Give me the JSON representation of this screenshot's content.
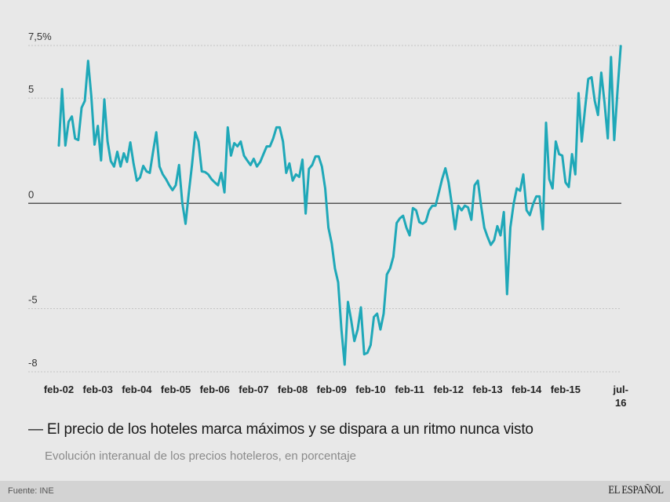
{
  "chart_data": {
    "type": "line",
    "title": "El precio de los hoteles marca máximos y se dispara a un ritmo nunca visto",
    "title_prefix": "—",
    "subtitle": "Evolución interanual de los precios hoteleros, en porcentaje",
    "xlabel": "",
    "ylabel": "",
    "ylim": [
      -8,
      7.5
    ],
    "grid": true,
    "legend": "none",
    "y_ticks": [
      {
        "value": 7.5,
        "label": "7,5%"
      },
      {
        "value": 5,
        "label": "5"
      },
      {
        "value": 0,
        "label": "0"
      },
      {
        "value": -5,
        "label": "-5"
      },
      {
        "value": -8,
        "label": "-8"
      }
    ],
    "x_start": "feb-02",
    "x_ticks": [
      {
        "month_index": 0,
        "label": "feb-02"
      },
      {
        "month_index": 12,
        "label": "feb-03"
      },
      {
        "month_index": 24,
        "label": "feb-04"
      },
      {
        "month_index": 36,
        "label": "feb-05"
      },
      {
        "month_index": 48,
        "label": "feb-06"
      },
      {
        "month_index": 60,
        "label": "feb-07"
      },
      {
        "month_index": 72,
        "label": "feb-08"
      },
      {
        "month_index": 84,
        "label": "feb-09"
      },
      {
        "month_index": 96,
        "label": "feb-10"
      },
      {
        "month_index": 108,
        "label": "feb-11"
      },
      {
        "month_index": 120,
        "label": "feb-12"
      },
      {
        "month_index": 132,
        "label": "feb-13"
      },
      {
        "month_index": 144,
        "label": "feb-14"
      },
      {
        "month_index": 156,
        "label": "feb-15"
      },
      {
        "month_index": 173,
        "label": "jul-",
        "label2": "16"
      }
    ],
    "series": [
      {
        "name": "Precios hoteleros",
        "color": "#1fa8b8",
        "values": [
          2.75,
          5.43,
          2.75,
          3.87,
          4.13,
          3.08,
          3.01,
          4.54,
          4.87,
          6.77,
          5.09,
          2.79,
          3.68,
          2.04,
          4.94,
          2.94,
          2.01,
          1.75,
          2.45,
          1.75,
          2.38,
          1.97,
          2.9,
          1.9,
          1.08,
          1.23,
          1.78,
          1.52,
          1.45,
          2.45,
          3.38,
          1.75,
          1.38,
          1.15,
          0.86,
          0.63,
          0.86,
          1.82,
          0.04,
          -0.97,
          0.48,
          1.82,
          3.38,
          2.94,
          1.52,
          1.49,
          1.38,
          1.15,
          1.0,
          0.86,
          1.45,
          0.52,
          3.61,
          2.27,
          2.86,
          2.71,
          2.94,
          2.27,
          2.04,
          1.82,
          2.12,
          1.75,
          1.97,
          2.34,
          2.71,
          2.71,
          3.08,
          3.61,
          3.61,
          2.94,
          1.45,
          1.9,
          1.08,
          1.38,
          1.26,
          2.08,
          -0.48,
          1.64,
          1.82,
          2.23,
          2.23,
          1.75,
          0.71,
          -1.15,
          -1.9,
          -3.09,
          -3.75,
          -5.99,
          -7.66,
          -4.68,
          -5.54,
          -6.54,
          -5.99,
          -4.94,
          -7.17,
          -7.1,
          -6.73,
          -5.39,
          -5.24,
          -5.99,
          -5.24,
          -3.38,
          -3.09,
          -2.53,
          -0.93,
          -0.71,
          -0.59,
          -1.15,
          -1.52,
          -0.22,
          -0.33,
          -0.89,
          -0.97,
          -0.86,
          -0.33,
          -0.11,
          -0.11,
          0.52,
          1.15,
          1.67,
          1.0,
          -0.04,
          -1.23,
          -0.11,
          -0.33,
          -0.11,
          -0.19,
          -0.78,
          0.86,
          1.08,
          -0.11,
          -1.15,
          -1.6,
          -1.97,
          -1.75,
          -1.08,
          -1.52,
          -0.41,
          -4.31,
          -1.15,
          -0.04,
          0.71,
          0.6,
          1.38,
          -0.33,
          -0.56,
          -0.04,
          0.33,
          0.33,
          -1.23,
          3.83,
          1.15,
          0.71,
          2.94,
          2.34,
          2.27,
          1.0,
          0.78,
          2.34,
          1.38,
          5.24,
          2.94,
          4.5,
          5.91,
          5.99,
          4.87,
          4.2,
          6.21,
          4.8,
          3.09,
          6.95,
          3.01,
          5.35,
          7.47
        ]
      }
    ]
  },
  "footer": {
    "source": "Fuente: INE",
    "brand": "EL ESPAÑOL"
  }
}
